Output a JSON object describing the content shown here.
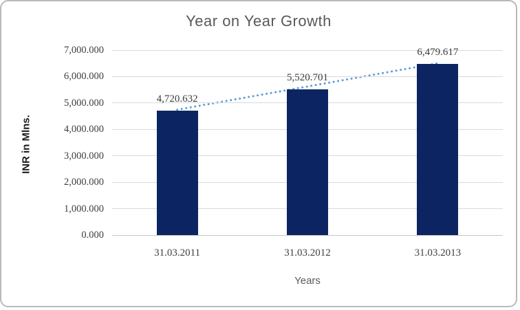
{
  "chart_data": {
    "type": "bar",
    "title": "Year on Year Growth",
    "categories": [
      "31.03.2011",
      "31.03.2012",
      "31.03.2013"
    ],
    "values": [
      4720.632,
      5520.701,
      6479.617
    ],
    "data_labels": [
      "4,720.632",
      "5,520.701",
      "6,479.617"
    ],
    "xlabel": "Years",
    "ylabel": "INR in Mlns.",
    "ylim": [
      0,
      7000
    ],
    "ytick_step": 1000,
    "ytick_labels": [
      "0.000",
      "1,000.000",
      "2,000.000",
      "3,000.000",
      "4,000.000",
      "5,000.000",
      "6,000.000",
      "7,000.000"
    ],
    "grid": true,
    "legend": "none",
    "bar_color": "#0c2562",
    "gridline_color": "#d9d9d9",
    "axis_line_color": "#c6c6c6",
    "tick_text_color": "#3d3d3d",
    "data_label_color": "#3a3a3a",
    "title_color": "#595959",
    "trendline": {
      "type": "linear",
      "style": "dotted",
      "color": "#5b9bd5"
    }
  }
}
